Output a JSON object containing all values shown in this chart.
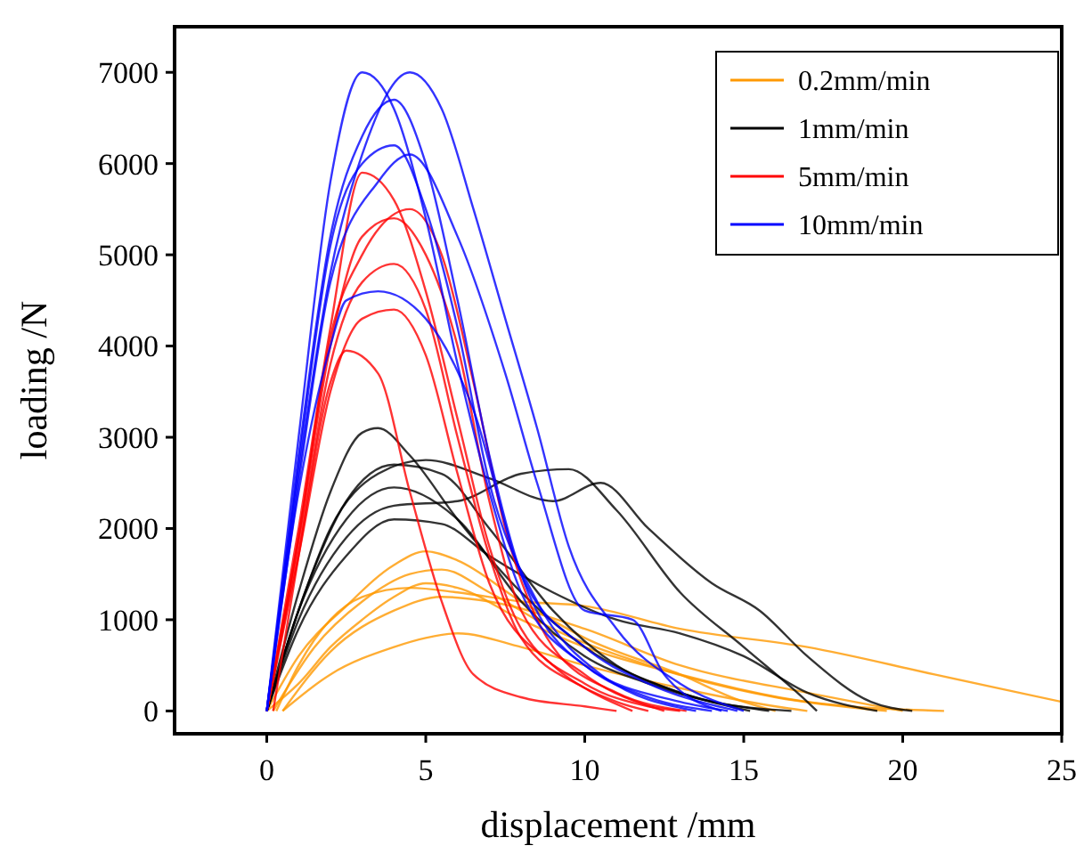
{
  "chart_data": {
    "type": "line",
    "xlabel": "displacement /mm",
    "ylabel": "loading /N",
    "xlim": [
      -2.9,
      25
    ],
    "xticks": [
      0,
      5,
      10,
      15,
      20,
      25
    ],
    "ylim": [
      -250,
      7500
    ],
    "yticks": [
      0,
      1000,
      2000,
      3000,
      4000,
      5000,
      6000,
      7000
    ],
    "grid": false,
    "legend": "top right",
    "marker": "none",
    "line_style": "solid",
    "series": [
      {
        "name": "0.2mm/min",
        "color": "#ff9900",
        "x": [
          0,
          1,
          2,
          3,
          4,
          5,
          6,
          8,
          10,
          13,
          17,
          21.3
        ],
        "values": [
          0,
          300,
          700,
          1000,
          1250,
          1400,
          1350,
          1000,
          700,
          400,
          100,
          0
        ]
      },
      {
        "color": "#ff9900",
        "x": [
          0.3,
          1,
          2,
          3,
          4.5,
          6,
          8,
          10,
          13,
          17,
          21,
          25
        ],
        "values": [
          0,
          500,
          1000,
          1250,
          1350,
          1300,
          1200,
          1150,
          900,
          700,
          400,
          100
        ]
      },
      {
        "color": "#ff9900",
        "x": [
          0.5,
          2,
          4,
          5,
          6,
          8,
          10,
          13,
          16,
          17
        ],
        "values": [
          0,
          400,
          700,
          800,
          850,
          700,
          500,
          250,
          50,
          0
        ]
      },
      {
        "color": "#ff9900",
        "x": [
          0.2,
          1.5,
          3,
          4.5,
          5.5,
          7,
          9,
          12,
          16,
          19.5
        ],
        "values": [
          0,
          700,
          1200,
          1500,
          1550,
          1300,
          900,
          500,
          150,
          0
        ]
      },
      {
        "color": "#ff9900",
        "x": [
          0,
          1,
          2.5,
          4,
          5,
          6,
          8,
          10,
          13,
          15,
          16
        ],
        "values": [
          0,
          600,
          1150,
          1600,
          1750,
          1650,
          1200,
          800,
          400,
          100,
          0
        ]
      },
      {
        "color": "#ff9900",
        "x": [
          0.5,
          2,
          4,
          5.5,
          7,
          10,
          13,
          17,
          20
        ],
        "values": [
          0,
          650,
          1100,
          1250,
          1200,
          900,
          500,
          200,
          0
        ]
      },
      {
        "name": "1mm/min",
        "color": "#000000",
        "x": [
          0,
          1,
          2,
          3,
          3.5,
          4.5,
          6,
          8,
          10,
          13,
          15.2
        ],
        "values": [
          0,
          1300,
          2400,
          3050,
          3100,
          2800,
          2100,
          1300,
          700,
          200,
          0
        ]
      },
      {
        "color": "#000000",
        "x": [
          0,
          1,
          2,
          3.5,
          5,
          7,
          9,
          10.5,
          12,
          14,
          15.5,
          17,
          19,
          20.3
        ],
        "values": [
          0,
          1100,
          2000,
          2600,
          2750,
          2550,
          2300,
          2500,
          2000,
          1400,
          1100,
          600,
          100,
          0
        ]
      },
      {
        "color": "#000000",
        "x": [
          0,
          1,
          2.5,
          4,
          6,
          8,
          9.5,
          11,
          13,
          15,
          17,
          17.3
        ],
        "values": [
          0,
          1000,
          1900,
          2250,
          2300,
          2600,
          2650,
          2200,
          1300,
          700,
          100,
          0
        ]
      },
      {
        "color": "#000000",
        "x": [
          0,
          1,
          2.5,
          4,
          5.5,
          7,
          9,
          11,
          13,
          15,
          17,
          19.2
        ],
        "values": [
          0,
          900,
          1700,
          2100,
          2050,
          1700,
          1300,
          1000,
          850,
          600,
          200,
          0
        ]
      },
      {
        "color": "#000000",
        "x": [
          0,
          1,
          2.5,
          4,
          6,
          8,
          10,
          12,
          14,
          16.5
        ],
        "values": [
          0,
          1100,
          2100,
          2450,
          2100,
          1200,
          600,
          300,
          100,
          0
        ]
      },
      {
        "color": "#000000",
        "x": [
          0,
          1.2,
          2.5,
          4,
          5.5,
          7,
          9,
          11,
          13,
          15.8
        ],
        "values": [
          0,
          1300,
          2300,
          2700,
          2600,
          2000,
          1100,
          500,
          200,
          0
        ]
      },
      {
        "name": "5mm/min",
        "color": "#ff0000",
        "x": [
          0,
          1,
          2,
          3,
          4,
          5,
          6,
          7,
          8,
          10,
          12,
          13
        ],
        "values": [
          0,
          2000,
          4200,
          5900,
          5600,
          4600,
          3200,
          1800,
          900,
          300,
          50,
          0
        ]
      },
      {
        "color": "#ff0000",
        "x": [
          0.2,
          1,
          2,
          2.5,
          3.5,
          4.5,
          5.5,
          6.5,
          8,
          10,
          11
        ],
        "values": [
          0,
          1700,
          3600,
          3950,
          3700,
          2400,
          1200,
          400,
          150,
          50,
          0
        ]
      },
      {
        "color": "#ff0000",
        "x": [
          0,
          1,
          2,
          3,
          4,
          5,
          6,
          7,
          8,
          10,
          12.5
        ],
        "values": [
          0,
          1900,
          4000,
          5200,
          5400,
          5000,
          4000,
          2300,
          1100,
          400,
          0
        ]
      },
      {
        "color": "#ff0000",
        "x": [
          0,
          1,
          2,
          3,
          4,
          5,
          6,
          7,
          8,
          10,
          11.5
        ],
        "values": [
          0,
          1800,
          3800,
          4700,
          4900,
          4400,
          3000,
          1700,
          800,
          250,
          0
        ]
      },
      {
        "color": "#ff0000",
        "x": [
          0,
          1,
          2,
          3,
          4.5,
          5.5,
          6.5,
          7.5,
          9,
          11,
          13.2
        ],
        "values": [
          0,
          1900,
          4100,
          5000,
          5500,
          5000,
          3600,
          2000,
          700,
          200,
          0
        ]
      },
      {
        "color": "#ff0000",
        "x": [
          0,
          1,
          2,
          3,
          4,
          5,
          6,
          7,
          9,
          11,
          12
        ],
        "values": [
          0,
          1700,
          3500,
          4300,
          4400,
          3900,
          2600,
          1400,
          500,
          100,
          0
        ]
      },
      {
        "name": "10mm/min",
        "color": "#0000ff",
        "x": [
          0,
          1,
          2,
          3,
          4,
          5,
          6,
          7,
          8,
          10,
          12,
          14
        ],
        "values": [
          0,
          3000,
          5800,
          7000,
          6600,
          5400,
          3800,
          2400,
          1300,
          500,
          150,
          0
        ]
      },
      {
        "color": "#0000ff",
        "x": [
          0,
          1,
          2,
          3,
          4.5,
          5.5,
          6.5,
          7.5,
          8.5,
          9.5,
          11,
          13,
          15
        ],
        "values": [
          0,
          2600,
          4800,
          6100,
          7000,
          6600,
          5500,
          4300,
          3100,
          1800,
          900,
          300,
          0
        ]
      },
      {
        "color": "#0000ff",
        "x": [
          0,
          1,
          2,
          3,
          4,
          5,
          6,
          7,
          8,
          10,
          13,
          14.5
        ],
        "values": [
          0,
          2800,
          5200,
          6300,
          6700,
          6000,
          4500,
          2800,
          1500,
          500,
          100,
          0
        ]
      },
      {
        "color": "#0000ff",
        "x": [
          0,
          1,
          2,
          2.5,
          3.5,
          5,
          6.5,
          8,
          10,
          12,
          14.8
        ],
        "values": [
          0,
          2400,
          4000,
          4500,
          4600,
          4300,
          3300,
          1500,
          700,
          300,
          0
        ]
      },
      {
        "color": "#0000ff",
        "x": [
          0,
          1,
          2,
          3,
          4,
          5,
          6,
          7,
          8.5,
          10.5,
          13.5
        ],
        "values": [
          0,
          2700,
          5100,
          6000,
          6200,
          5500,
          4200,
          2500,
          1200,
          400,
          0
        ]
      },
      {
        "color": "#0000ff",
        "x": [
          0,
          1,
          2,
          3.5,
          4.5,
          6,
          7.5,
          8.5,
          10,
          11.5,
          12.5,
          14.3
        ],
        "values": [
          0,
          2500,
          4700,
          5800,
          6100,
          5200,
          3700,
          2500,
          1100,
          1000,
          400,
          0
        ]
      }
    ]
  }
}
